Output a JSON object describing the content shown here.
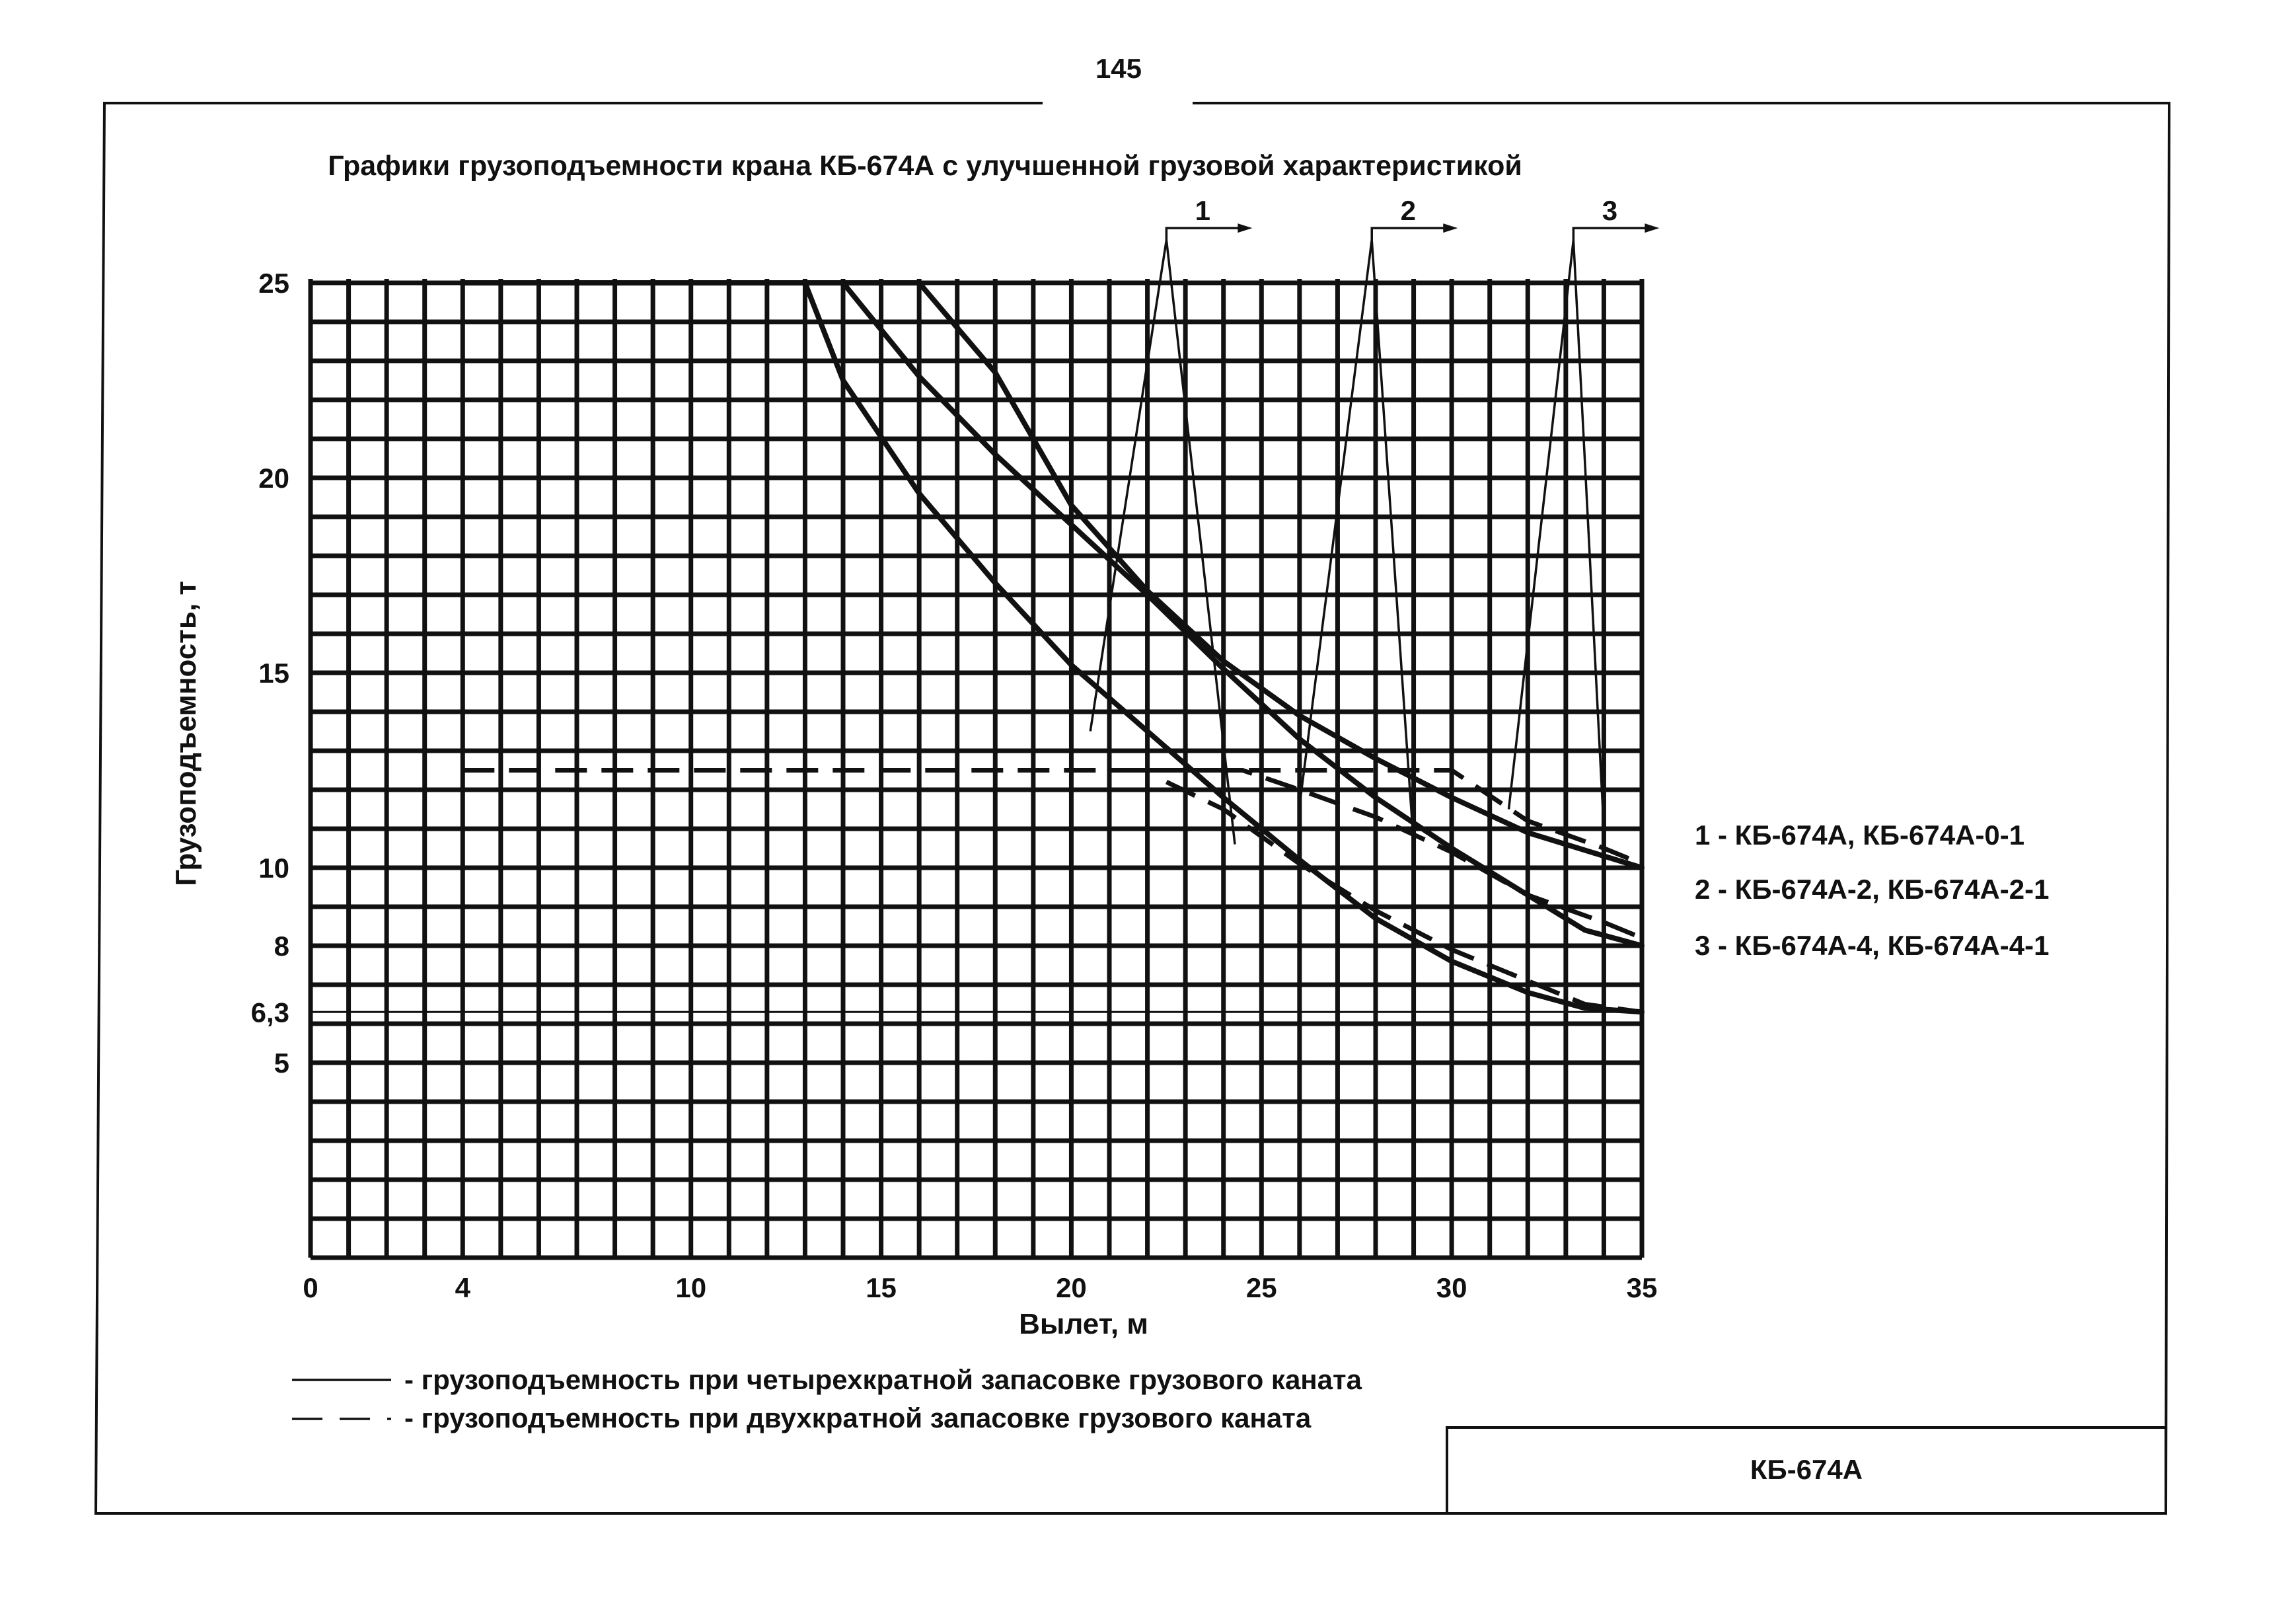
{
  "page_number": "145",
  "chart_data": {
    "type": "line",
    "title": "Графики грузоподъемности крана КБ-674А с улучшенной грузовой характеристикой",
    "xlabel": "Вылет, м",
    "ylabel": "Грузоподъемность, т",
    "xlim": [
      0,
      35
    ],
    "ylim": [
      0,
      25
    ],
    "x_ticks": [
      "0",
      "4",
      "10",
      "15",
      "20",
      "25",
      "30",
      "35"
    ],
    "x_tick_values": [
      0,
      4,
      10,
      15,
      20,
      25,
      30,
      35
    ],
    "y_ticks": [
      "5",
      "6,3",
      "8",
      "10",
      "15",
      "20",
      "25"
    ],
    "y_tick_values": [
      5,
      6.3,
      8,
      10,
      15,
      20,
      25
    ],
    "grid": true,
    "series": [
      {
        "name": "1 - КБ-674А, КБ-674А-0-1",
        "callout": "1",
        "four_fold": [
          [
            4,
            25
          ],
          [
            16,
            25
          ],
          [
            18,
            22.7
          ],
          [
            20,
            19.3
          ],
          [
            22,
            17.1
          ],
          [
            24,
            15.3
          ],
          [
            26,
            13.9
          ],
          [
            28,
            12.8
          ],
          [
            30,
            11.8
          ],
          [
            32,
            10.9
          ],
          [
            34,
            10.3
          ],
          [
            35,
            10
          ]
        ],
        "two_fold": [
          [
            4,
            12.5
          ],
          [
            30,
            12.5
          ],
          [
            32,
            11.2
          ],
          [
            34,
            10.5
          ],
          [
            35,
            10.1
          ]
        ]
      },
      {
        "name": "2 - КБ-674А-2, КБ-674А-2-1",
        "callout": "2",
        "four_fold": [
          [
            14,
            25
          ],
          [
            16,
            22.6
          ],
          [
            18,
            20.6
          ],
          [
            20,
            18.8
          ],
          [
            22,
            17
          ],
          [
            24,
            15.1
          ],
          [
            26,
            13.3
          ],
          [
            28,
            11.8
          ],
          [
            30,
            10.5
          ],
          [
            32,
            9.3
          ],
          [
            33.5,
            8.4
          ],
          [
            35,
            8
          ]
        ],
        "two_fold": [
          [
            21.5,
            12.5
          ],
          [
            24.5,
            12.5
          ],
          [
            26,
            12
          ],
          [
            28,
            11.3
          ],
          [
            30,
            10.4
          ],
          [
            32,
            9.3
          ],
          [
            34,
            8.6
          ],
          [
            35,
            8.2
          ]
        ]
      },
      {
        "name": "3 - КБ-674А-4, КБ-674А-4-1",
        "callout": "3",
        "four_fold": [
          [
            13,
            25
          ],
          [
            14,
            22.5
          ],
          [
            16,
            19.6
          ],
          [
            18,
            17.3
          ],
          [
            20,
            15.2
          ],
          [
            22,
            13.5
          ],
          [
            24,
            11.8
          ],
          [
            26,
            10.2
          ],
          [
            28,
            8.7
          ],
          [
            30,
            7.6
          ],
          [
            32,
            6.8
          ],
          [
            33.5,
            6.4
          ],
          [
            35,
            6.3
          ]
        ],
        "two_fold": [
          [
            22.5,
            12.2
          ],
          [
            24,
            11.5
          ],
          [
            26,
            10.1
          ],
          [
            28,
            8.9
          ],
          [
            30,
            7.9
          ],
          [
            32,
            7.1
          ],
          [
            33.5,
            6.5
          ],
          [
            35,
            6.3
          ]
        ]
      }
    ],
    "reference_lines_y": [
      6.3,
      6.0
    ],
    "callouts": [
      {
        "label": "1",
        "zigzag": [
          [
            20.5,
            13.5
          ],
          [
            22.5,
            26.1
          ],
          [
            24.3,
            10.6
          ]
        ]
      },
      {
        "label": "2",
        "zigzag": [
          [
            26,
            11.6
          ],
          [
            27.9,
            26.1
          ],
          [
            29,
            10.6
          ]
        ]
      },
      {
        "label": "3",
        "zigzag": [
          [
            31.5,
            11.5
          ],
          [
            33.2,
            26.1
          ],
          [
            34,
            11
          ]
        ]
      }
    ],
    "legend": {
      "placement": "bottom",
      "solid_label": "- грузоподъемность при четырехкратной запасовке грузового каната",
      "dashed_label": "- грузоподъемность при двухкратной запасовке грузового каната"
    }
  },
  "stamp": {
    "label": "КБ-674А"
  }
}
